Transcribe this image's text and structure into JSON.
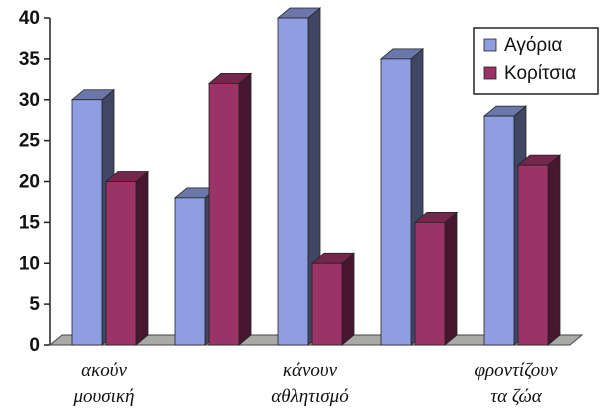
{
  "chart_data": {
    "type": "bar",
    "three_d": true,
    "categories": [
      [
        "ακούν",
        "μουσική"
      ],
      [
        "",
        ""
      ],
      [
        "κάνουν",
        "αθλητισμό"
      ],
      [
        "",
        ""
      ],
      [
        "φροντίζουν",
        "τα ζώα"
      ]
    ],
    "series": [
      {
        "name": "Αγόρια",
        "values": [
          30,
          18,
          40,
          35,
          28
        ],
        "color": "#8f9ee0"
      },
      {
        "name": "Κορίτσια",
        "values": [
          20,
          32,
          10,
          15,
          22
        ],
        "color": "#9b3366"
      }
    ],
    "ylim": [
      0,
      40
    ],
    "yticks": [
      0,
      5,
      10,
      15,
      20,
      25,
      30,
      35,
      40
    ],
    "legend_position": "top-right",
    "grid": false
  }
}
